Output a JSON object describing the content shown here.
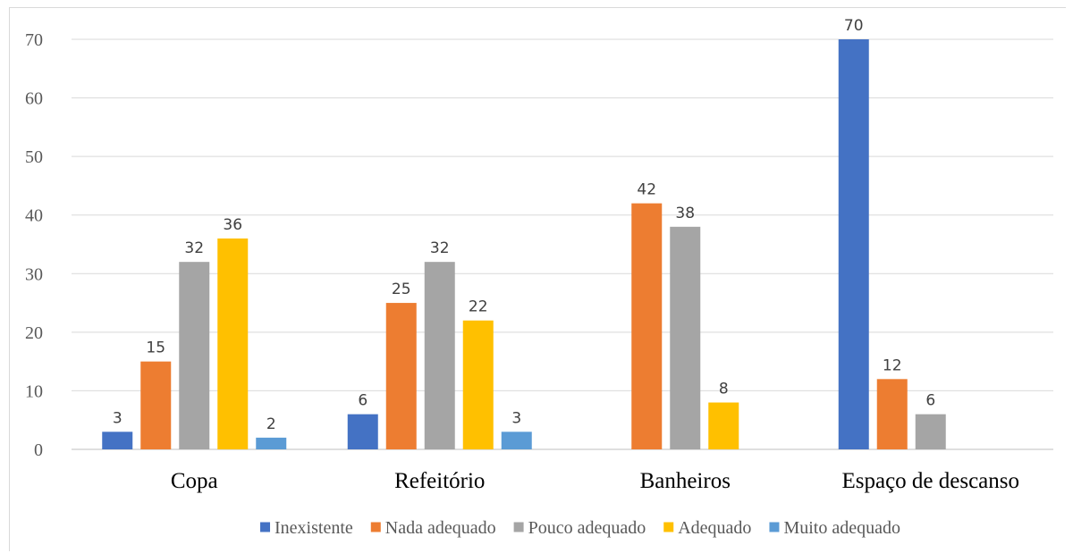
{
  "chart_data": {
    "type": "bar",
    "title": "",
    "xlabel": "",
    "ylabel": "",
    "categories": [
      "Copa",
      "Refeitório",
      "Banheiros",
      "Espaço de descanso"
    ],
    "series": [
      {
        "name": "Inexistente",
        "color": "#4472C4",
        "values": [
          3,
          6,
          null,
          70
        ]
      },
      {
        "name": "Nada adequado",
        "color": "#ED7D31",
        "values": [
          15,
          25,
          42,
          12
        ]
      },
      {
        "name": "Pouco adequado",
        "color": "#A5A5A5",
        "values": [
          32,
          32,
          38,
          6
        ]
      },
      {
        "name": "Adequado",
        "color": "#FFC000",
        "values": [
          36,
          22,
          8,
          null
        ]
      },
      {
        "name": "Muito adequado",
        "color": "#5B9BD5",
        "values": [
          2,
          3,
          null,
          null
        ]
      }
    ],
    "ylim": [
      0,
      70
    ],
    "yticks": [
      "0",
      "10",
      "20",
      "30",
      "40",
      "50",
      "60",
      "70"
    ],
    "grid": true,
    "legend": "bottom"
  }
}
